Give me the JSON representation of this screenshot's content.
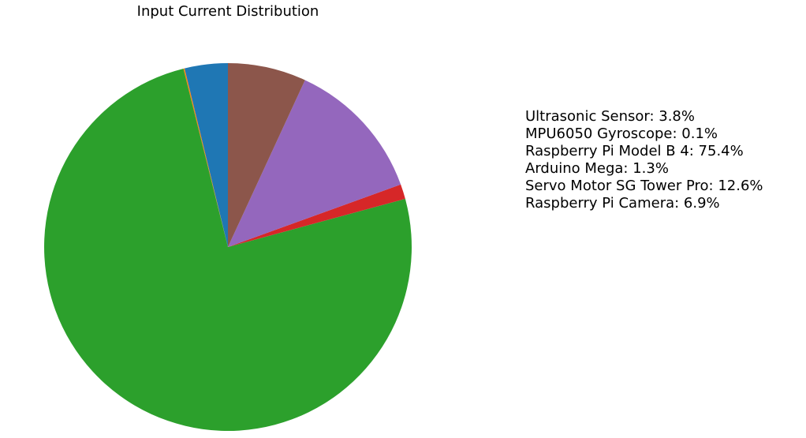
{
  "chart_data": {
    "type": "pie",
    "title": "Input Current Distribution",
    "start_angle_deg": 90,
    "direction": "counterclockwise",
    "legend_placement": "right",
    "slices": [
      {
        "label": "Ultrasonic Sensor",
        "value": 3.8,
        "color": "#1f77b4"
      },
      {
        "label": "MPU6050 Gyroscope",
        "value": 0.1,
        "color": "#ff7f0e"
      },
      {
        "label": "Raspberry Pi Model B 4",
        "value": 75.4,
        "color": "#2ca02c"
      },
      {
        "label": "Arduino Mega",
        "value": 1.3,
        "color": "#d62728"
      },
      {
        "label": "Servo Motor SG Tower Pro",
        "value": 12.6,
        "color": "#9467bd"
      },
      {
        "label": "Raspberry Pi Camera",
        "value": 6.9,
        "color": "#8c564b"
      }
    ],
    "legend_entries": [
      "Ultrasonic Sensor: 3.8%",
      "MPU6050 Gyroscope: 0.1%",
      "Raspberry Pi Model B 4: 75.4%",
      "Arduino Mega: 1.3%",
      "Servo Motor SG Tower Pro: 12.6%",
      "Raspberry Pi Camera: 6.9%"
    ]
  }
}
